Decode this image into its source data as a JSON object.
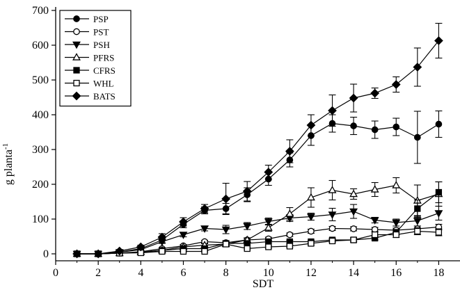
{
  "chart_data": {
    "type": "line",
    "title": "",
    "xlabel": "SDT",
    "ylabel": "g planta",
    "ylabel_sup": "-1",
    "xlim": [
      0,
      19
    ],
    "ylim": [
      -20,
      700
    ],
    "xticks": [
      0,
      2,
      4,
      6,
      8,
      10,
      12,
      14,
      16,
      18
    ],
    "yticks": [
      0,
      100,
      200,
      300,
      400,
      500,
      600,
      700
    ],
    "grid": false,
    "legend_position": "top-left",
    "x": [
      1,
      2,
      3,
      4,
      5,
      6,
      7,
      8,
      9,
      10,
      11,
      12,
      13,
      14,
      15,
      16,
      17,
      18
    ],
    "series": [
      {
        "name": "PSP",
        "marker": "circle-filled",
        "values": [
          0,
          0,
          5,
          15,
          40,
          85,
          125,
          130,
          170,
          215,
          270,
          340,
          375,
          368,
          357,
          365,
          335,
          373
        ],
        "errors": [
          0,
          0,
          2,
          4,
          8,
          10,
          10,
          15,
          20,
          18,
          20,
          28,
          25,
          25,
          25,
          25,
          75,
          38
        ]
      },
      {
        "name": "PST",
        "marker": "circle-open",
        "values": [
          0,
          0,
          2,
          6,
          15,
          23,
          35,
          32,
          40,
          43,
          55,
          65,
          73,
          72,
          70,
          68,
          72,
          77
        ],
        "errors": [
          0,
          0,
          1,
          2,
          3,
          4,
          4,
          4,
          5,
          5,
          5,
          6,
          6,
          6,
          6,
          6,
          8,
          8
        ]
      },
      {
        "name": "PSH",
        "marker": "triangle-down-filled",
        "values": [
          0,
          0,
          5,
          12,
          35,
          55,
          73,
          70,
          80,
          93,
          103,
          107,
          113,
          122,
          97,
          90,
          95,
          117
        ],
        "errors": [
          0,
          0,
          2,
          3,
          5,
          6,
          7,
          12,
          10,
          10,
          10,
          10,
          18,
          20,
          8,
          10,
          15,
          20
        ]
      },
      {
        "name": "PFRS",
        "marker": "triangle-up-open",
        "values": [
          0,
          0,
          2,
          5,
          10,
          20,
          25,
          28,
          40,
          75,
          115,
          162,
          183,
          172,
          185,
          197,
          153,
          172
        ],
        "errors": [
          0,
          0,
          1,
          2,
          3,
          4,
          4,
          5,
          6,
          10,
          18,
          28,
          28,
          15,
          20,
          22,
          45,
          35
        ]
      },
      {
        "name": "CFRS",
        "marker": "square-filled",
        "values": [
          0,
          0,
          2,
          5,
          10,
          15,
          15,
          30,
          30,
          35,
          35,
          35,
          40,
          40,
          45,
          62,
          130,
          177
        ],
        "errors": [
          0,
          0,
          1,
          2,
          2,
          3,
          3,
          8,
          4,
          4,
          4,
          4,
          5,
          5,
          5,
          8,
          25,
          30
        ]
      },
      {
        "name": "WHL",
        "marker": "square-open",
        "values": [
          0,
          0,
          2,
          3,
          7,
          7,
          7,
          28,
          15,
          20,
          22,
          30,
          37,
          40,
          55,
          55,
          65,
          62
        ],
        "errors": [
          0,
          0,
          1,
          1,
          2,
          2,
          2,
          6,
          3,
          4,
          4,
          5,
          5,
          6,
          8,
          8,
          10,
          10
        ]
      },
      {
        "name": "BATS",
        "marker": "diamond-filled",
        "values": [
          0,
          0,
          8,
          20,
          48,
          92,
          130,
          158,
          180,
          235,
          295,
          370,
          412,
          448,
          462,
          487,
          537,
          613
        ],
        "errors": [
          0,
          0,
          2,
          5,
          10,
          12,
          12,
          45,
          28,
          20,
          33,
          30,
          45,
          40,
          15,
          22,
          55,
          50
        ]
      }
    ]
  }
}
